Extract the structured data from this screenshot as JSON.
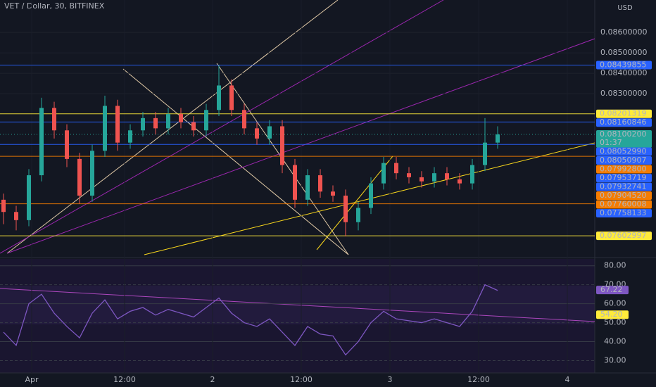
{
  "header": {
    "symbol": "VET / Dollar, 30, BITFINEX",
    "currency": "USD"
  },
  "price_axis": {
    "ylim": [
      0.07507,
      0.08759
    ],
    "ticks": [
      {
        "value": 0.086,
        "label": "0.08600000"
      },
      {
        "value": 0.085,
        "label": "0.08500000"
      },
      {
        "value": 0.084,
        "label": "0.08400000"
      },
      {
        "value": 0.083,
        "label": "0.08300000"
      }
    ]
  },
  "price_tags": [
    {
      "value": 0.08439855,
      "color": "#2962ff",
      "line": true
    },
    {
      "value": 0.08201319,
      "color": "#ffeb3b",
      "line": true
    },
    {
      "value": 0.08160846,
      "color": "#2962ff",
      "line": true
    },
    {
      "value": 0.081002,
      "label": "0.08100200",
      "color": "#26a69a",
      "countdown": "01:37",
      "line": true
    },
    {
      "value": 0.0805299,
      "label": "0.08052990",
      "color": "#2962ff"
    },
    {
      "value": 0.08050907,
      "color": "#2962ff",
      "line": true
    },
    {
      "value": 0.079928,
      "label": "0.07992800",
      "color": "#f57c00",
      "line": true
    },
    {
      "value": 0.07953719,
      "color": "#2962ff"
    },
    {
      "value": 0.07932741,
      "color": "#2962ff"
    },
    {
      "value": 0.0790452,
      "label": "0.07904520",
      "color": "#f57c00"
    },
    {
      "value": 0.07760008,
      "color": "#f57c00",
      "line": true
    },
    {
      "value": 0.07758133,
      "color": "#2962ff"
    },
    {
      "value": 0.07602997,
      "color": "#ffeb3b",
      "line": true
    }
  ],
  "candles": {
    "open": [
      0.0778,
      0.0772,
      0.0768,
      0.079,
      0.0823,
      0.0812,
      0.0798,
      0.078,
      0.0802,
      0.0824,
      0.0806,
      0.0812,
      0.0818,
      0.0813,
      0.082,
      0.0816,
      0.0812,
      0.0822,
      0.0834,
      0.0822,
      0.0813,
      0.0808,
      0.0814,
      0.0795,
      0.0778,
      0.079,
      0.0782,
      0.078,
      0.0767,
      0.0774,
      0.0786,
      0.0796,
      0.0791,
      0.0789,
      0.0787,
      0.0791,
      0.0788,
      0.0786,
      0.0795,
      0.0806
    ],
    "high": [
      0.0781,
      0.0775,
      0.0793,
      0.0828,
      0.0826,
      0.0815,
      0.0801,
      0.0805,
      0.0829,
      0.0827,
      0.0815,
      0.0821,
      0.0821,
      0.0823,
      0.0823,
      0.0819,
      0.0825,
      0.0844,
      0.0837,
      0.0825,
      0.0816,
      0.0817,
      0.0817,
      0.0798,
      0.0793,
      0.0793,
      0.0785,
      0.0783,
      0.0777,
      0.0789,
      0.0799,
      0.0799,
      0.0794,
      0.0792,
      0.0794,
      0.0794,
      0.0791,
      0.0798,
      0.0818,
      0.0814
    ],
    "low": [
      0.0766,
      0.0763,
      0.0765,
      0.0787,
      0.0808,
      0.0794,
      0.0776,
      0.0777,
      0.0799,
      0.0802,
      0.0803,
      0.0809,
      0.081,
      0.081,
      0.0813,
      0.0809,
      0.0809,
      0.0819,
      0.0819,
      0.081,
      0.0805,
      0.0805,
      0.0791,
      0.0774,
      0.0775,
      0.0779,
      0.0777,
      0.076,
      0.0763,
      0.0771,
      0.0783,
      0.0788,
      0.0786,
      0.0784,
      0.0784,
      0.0785,
      0.0783,
      0.0783,
      0.0792,
      0.0803
    ],
    "close": [
      0.0772,
      0.0768,
      0.079,
      0.0823,
      0.0812,
      0.0798,
      0.078,
      0.0802,
      0.0824,
      0.0806,
      0.0812,
      0.0818,
      0.0813,
      0.082,
      0.0816,
      0.0812,
      0.0822,
      0.0834,
      0.0822,
      0.0813,
      0.0808,
      0.0814,
      0.0795,
      0.0778,
      0.079,
      0.0782,
      0.078,
      0.0767,
      0.0774,
      0.0786,
      0.0796,
      0.0791,
      0.0789,
      0.0787,
      0.0791,
      0.0788,
      0.0786,
      0.0795,
      0.0806,
      0.081
    ]
  },
  "rsi": {
    "ylim": [
      23.5,
      83.6
    ],
    "ticks": [
      {
        "value": 80,
        "label": "80.00"
      },
      {
        "value": 70,
        "label": "70.00"
      },
      {
        "value": 60,
        "label": "60.00"
      },
      {
        "value": 50,
        "label": "50.00"
      },
      {
        "value": 40,
        "label": "40.00"
      },
      {
        "value": 30,
        "label": "30.00"
      }
    ],
    "values": [
      45,
      38,
      60,
      65,
      55,
      48,
      42,
      55,
      62,
      52,
      56,
      58,
      54,
      57,
      55,
      53,
      58,
      63,
      55,
      50,
      48,
      52,
      45,
      38,
      48,
      44,
      43,
      33,
      40,
      50,
      56,
      52,
      51,
      50,
      52,
      50,
      48,
      56,
      70,
      67
    ],
    "tags": [
      {
        "value": 67.22,
        "color": "#7e57c2"
      },
      {
        "value": 54.2,
        "label": "54.20",
        "color": "#ffeb3b"
      }
    ]
  },
  "time_axis": [
    "Apr",
    "12:00",
    "2",
    "12:00",
    "3",
    "12:00",
    "4"
  ]
}
